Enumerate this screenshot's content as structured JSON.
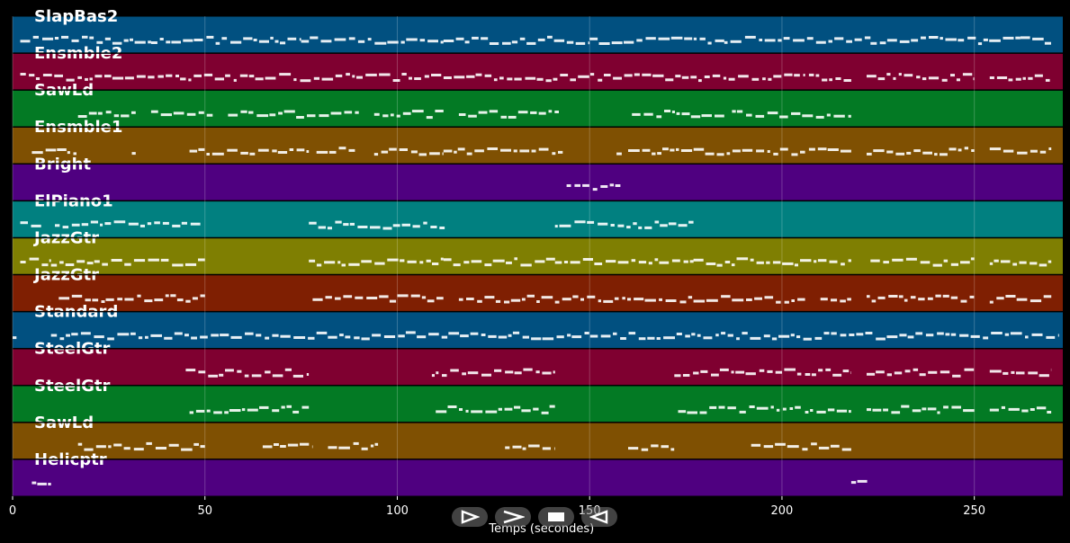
{
  "chart_data": {
    "type": "piano-roll",
    "xlabel": "Temps (secondes)",
    "xlim": [
      0,
      273
    ],
    "xticks": [
      0,
      50,
      100,
      150,
      200,
      250
    ],
    "grid": true,
    "tracks": [
      {
        "name": "SlapBas2",
        "color": "#015080",
        "segments": [
          [
            2,
            36
          ],
          [
            36,
            75
          ],
          [
            75,
            112
          ],
          [
            112,
            150
          ],
          [
            150,
            185
          ],
          [
            185,
            223
          ],
          [
            223,
            262
          ],
          [
            262,
            270
          ]
        ]
      },
      {
        "name": "Ensmble2",
        "color": "#7f0030",
        "segments": [
          [
            2,
            206
          ],
          [
            207,
            218
          ],
          [
            222,
            250
          ],
          [
            254,
            270
          ]
        ]
      },
      {
        "name": "SawLd",
        "color": "#037a24",
        "segments": [
          [
            17,
            32
          ],
          [
            36,
            52
          ],
          [
            56,
            90
          ],
          [
            94,
            112
          ],
          [
            116,
            142
          ],
          [
            161,
            185
          ],
          [
            187,
            218
          ]
        ]
      },
      {
        "name": "Ensmble1",
        "color": "#7f5002",
        "segments": [
          [
            5,
            17
          ],
          [
            31,
            32
          ],
          [
            46,
            77
          ],
          [
            79,
            89
          ],
          [
            94,
            112
          ],
          [
            112,
            143
          ],
          [
            157,
            159
          ],
          [
            160,
            206
          ],
          [
            207,
            218
          ],
          [
            222,
            250
          ],
          [
            254,
            270
          ]
        ]
      },
      {
        "name": "Bright",
        "color": "#4f0080",
        "segments": [
          [
            144,
            158
          ]
        ]
      },
      {
        "name": "ElPiano1",
        "color": "#018080",
        "segments": [
          [
            2,
            8
          ],
          [
            11,
            49
          ],
          [
            77,
            113
          ],
          [
            141,
            177
          ]
        ]
      },
      {
        "name": "JazzGtr",
        "color": "#7f7f02",
        "segments": [
          [
            2,
            10
          ],
          [
            10,
            50
          ],
          [
            77,
            112
          ],
          [
            112,
            141
          ],
          [
            141,
            177
          ],
          [
            177,
            218
          ],
          [
            223,
            250
          ],
          [
            254,
            270
          ]
        ]
      },
      {
        "name": "JazzGtr",
        "color": "#7f1f02",
        "segments": [
          [
            12,
            50
          ],
          [
            78,
            112
          ],
          [
            116,
            141
          ],
          [
            141,
            177
          ],
          [
            177,
            206
          ],
          [
            210,
            218
          ],
          [
            222,
            250
          ],
          [
            254,
            270
          ]
        ]
      },
      {
        "name": "Standard",
        "color": "#015080",
        "segments": [
          [
            0,
            1
          ],
          [
            10,
            272
          ]
        ]
      },
      {
        "name": "SteelGtr",
        "color": "#7f0030",
        "segments": [
          [
            45,
            77
          ],
          [
            109,
            141
          ],
          [
            172,
            205
          ],
          [
            206,
            218
          ],
          [
            222,
            250
          ],
          [
            254,
            270
          ]
        ]
      },
      {
        "name": "SteelGtr",
        "color": "#037a24",
        "segments": [
          [
            46,
            77
          ],
          [
            110,
            141
          ],
          [
            173,
            205
          ],
          [
            206,
            218
          ],
          [
            222,
            250
          ],
          [
            254,
            270
          ]
        ]
      },
      {
        "name": "SawLd",
        "color": "#7f5002",
        "segments": [
          [
            17,
            50
          ],
          [
            65,
            78
          ],
          [
            82,
            95
          ],
          [
            128,
            141
          ],
          [
            160,
            172
          ],
          [
            192,
            218
          ]
        ]
      },
      {
        "name": "Helicptr",
        "color": "#4f0080",
        "segments": [
          [
            5,
            10
          ],
          [
            218,
            223
          ]
        ]
      }
    ]
  },
  "controls": [
    {
      "name": "play-icon",
      "symbol": "play"
    },
    {
      "name": "fast-forward-icon",
      "symbol": "forward"
    },
    {
      "name": "stop-icon",
      "symbol": "stop"
    },
    {
      "name": "rewind-icon",
      "symbol": "rewind"
    }
  ]
}
